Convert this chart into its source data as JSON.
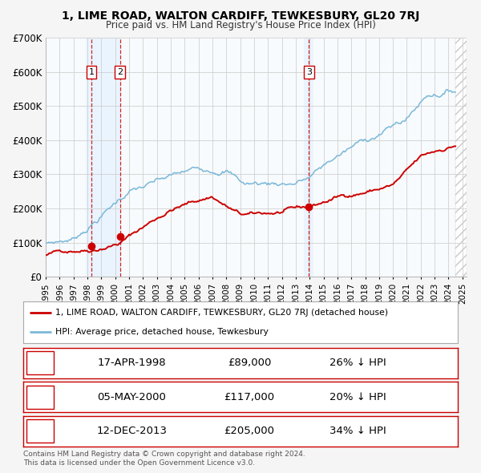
{
  "title": "1, LIME ROAD, WALTON CARDIFF, TEWKESBURY, GL20 7RJ",
  "subtitle": "Price paid vs. HM Land Registry's House Price Index (HPI)",
  "legend_line1": "1, LIME ROAD, WALTON CARDIFF, TEWKESBURY, GL20 7RJ (detached house)",
  "legend_line2": "HPI: Average price, detached house, Tewkesbury",
  "footer1": "Contains HM Land Registry data © Crown copyright and database right 2024.",
  "footer2": "This data is licensed under the Open Government Licence v3.0.",
  "transactions": [
    {
      "num": 1,
      "date": "17-APR-1998",
      "price": "£89,000",
      "pct": "26% ↓ HPI",
      "year": 1998.3
    },
    {
      "num": 2,
      "date": "05-MAY-2000",
      "price": "£117,000",
      "pct": "20% ↓ HPI",
      "year": 2000.35
    },
    {
      "num": 3,
      "date": "12-DEC-2013",
      "price": "£205,000",
      "pct": "34% ↓ HPI",
      "year": 2013.95
    }
  ],
  "transaction_values": [
    89000,
    117000,
    205000
  ],
  "hpi_color": "#7ab8d9",
  "price_color": "#cc0000",
  "vline_color": "#cc0000",
  "shade_color": "#ddeeff",
  "hatch_color": "#cccccc",
  "ylim": [
    0,
    700000
  ],
  "xlim_start": 1995.0,
  "xlim_end": 2025.3,
  "yticks": [
    0,
    100000,
    200000,
    300000,
    400000,
    500000,
    600000,
    700000
  ],
  "ytick_labels": [
    "£0",
    "£100K",
    "£200K",
    "£300K",
    "£400K",
    "£500K",
    "£600K",
    "£700K"
  ],
  "xticks": [
    1995,
    1996,
    1997,
    1998,
    1999,
    2000,
    2001,
    2002,
    2003,
    2004,
    2005,
    2006,
    2007,
    2008,
    2009,
    2010,
    2011,
    2012,
    2013,
    2014,
    2015,
    2016,
    2017,
    2018,
    2019,
    2020,
    2021,
    2022,
    2023,
    2024,
    2025
  ],
  "bg_color": "#f5f5f5",
  "plot_bg": "#ffffff",
  "grid_color": "#cccccc",
  "shade_start1": 1997.9,
  "shade_end1": 2000.45,
  "shade_start3": 2013.6,
  "shade_end3": 2014.3
}
